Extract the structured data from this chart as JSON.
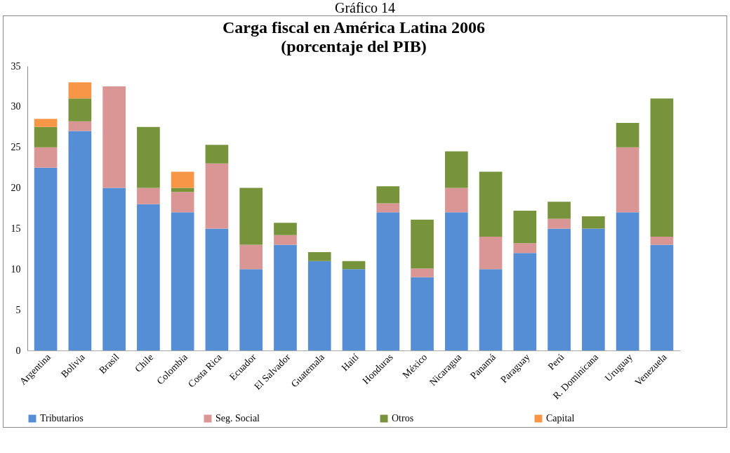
{
  "chart_data": {
    "type": "bar",
    "title": "Carga fiscal en América Latina 2006",
    "subtitle": "(porcentaje del PIB)",
    "annotations": [
      "Gráfico 14"
    ],
    "categories": [
      "Argentina",
      "Bolivia",
      "Brasil",
      "Chile",
      "Colombia",
      "Costa Rica",
      "Ecuador",
      "El Salvador",
      "Guatemala",
      "Haití",
      "Honduras",
      "México",
      "Nicaragua",
      "Panamá",
      "Paraguay",
      "Perú",
      "R. Dominicana",
      "Uruguay",
      "Venezuela"
    ],
    "stacked": true,
    "series": [
      {
        "name": "Tributarios",
        "color": "#558ed5",
        "values": [
          22.5,
          27,
          20,
          18,
          17,
          15,
          10,
          13,
          11,
          10,
          17,
          9,
          17,
          10,
          12,
          15,
          15,
          17,
          13
        ]
      },
      {
        "name": "Seg. Social",
        "color": "#d99694",
        "values": [
          2.5,
          1.2,
          12.5,
          2,
          2.5,
          8,
          3,
          1.2,
          0,
          0,
          1.1,
          1.1,
          3,
          4,
          1.2,
          1.2,
          0,
          8,
          1
        ]
      },
      {
        "name": "Otros",
        "color": "#77933c",
        "values": [
          2.5,
          2.8,
          0,
          7.5,
          0.5,
          2.3,
          7,
          1.5,
          1.1,
          1,
          2.1,
          6,
          4.5,
          8,
          4,
          2.1,
          1.5,
          3,
          17
        ]
      },
      {
        "name": "Capital",
        "color": "#f79646",
        "values": [
          1,
          2,
          0,
          0,
          2,
          0,
          0,
          0,
          0,
          0,
          0,
          0,
          0,
          0,
          0,
          0,
          0,
          0,
          0
        ]
      }
    ],
    "ylim": [
      0,
      35
    ],
    "yticks": [
      0,
      5,
      10,
      15,
      20,
      25,
      30,
      35
    ],
    "legend": "bottom"
  }
}
